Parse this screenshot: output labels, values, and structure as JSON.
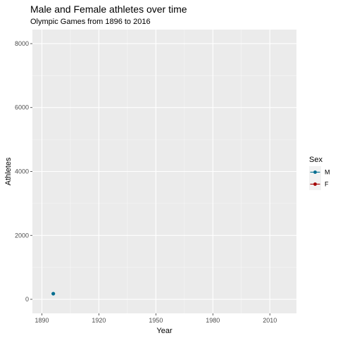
{
  "chart_data": {
    "type": "line",
    "title": "Male and Female athletes over time",
    "subtitle": "Olympic Games from 1896 to 2016",
    "xlabel": "Year",
    "ylabel": "Athletes",
    "xlim": [
      1885,
      2024
    ],
    "ylim": [
      -440,
      8440
    ],
    "x_ticks": [
      1890,
      1920,
      1950,
      1980,
      2010
    ],
    "y_ticks": [
      0,
      2000,
      4000,
      6000,
      8000
    ],
    "grid": true,
    "legend": {
      "title": "Sex",
      "position": "right"
    },
    "series": [
      {
        "name": "M",
        "color": "#006d8f",
        "points": [
          {
            "x": 1896,
            "y": 176
          }
        ]
      },
      {
        "name": "F",
        "color": "#a30000",
        "points": []
      }
    ]
  }
}
